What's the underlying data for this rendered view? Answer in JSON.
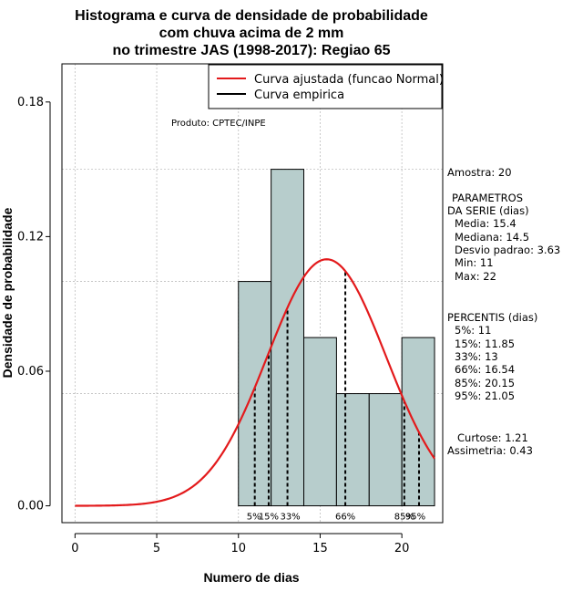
{
  "chart_data": {
    "type": "bar",
    "title_lines": [
      "Histograma e curva de densidade de probabilidade",
      "com chuva acima de 2 mm",
      "no trimestre JAS (1998-2017): Regiao 65"
    ],
    "xlabel": "Numero de dias",
    "ylabel": "Densidade de probabilidade",
    "xlim": [
      -0.8,
      22.5
    ],
    "ylim": [
      -0.0075,
      0.197
    ],
    "x_ticks": [
      0,
      5,
      10,
      15,
      20
    ],
    "x_tick_labels": [
      "0",
      "5",
      "10",
      "15",
      "20"
    ],
    "y_ticks": [
      0.0,
      0.06,
      0.12,
      0.18
    ],
    "y_tick_labels": [
      "0.00",
      "0.06",
      "0.12",
      "0.18"
    ],
    "grid": true,
    "grid_x": [
      0,
      5,
      10,
      15,
      20
    ],
    "grid_y": [
      0.05,
      0.1,
      0.15
    ],
    "histogram": {
      "bins": [
        {
          "from": 10,
          "to": 12,
          "density": 0.1
        },
        {
          "from": 12,
          "to": 14,
          "density": 0.15
        },
        {
          "from": 14,
          "to": 16,
          "density": 0.075
        },
        {
          "from": 16,
          "to": 18,
          "density": 0.05
        },
        {
          "from": 18,
          "to": 20,
          "density": 0.05
        },
        {
          "from": 20,
          "to": 22,
          "density": 0.075
        }
      ],
      "fill": "#b7cdcc",
      "stroke": "#000000"
    },
    "normal_curve": {
      "mean": 15.4,
      "sd": 3.63,
      "x_from": 0,
      "x_to": 22,
      "color": "#e31a1c"
    },
    "percentile_lines": [
      {
        "label": "5%",
        "x": 11
      },
      {
        "label": "15%",
        "x": 11.85
      },
      {
        "label": "33%",
        "x": 13
      },
      {
        "label": "66%",
        "x": 16.54
      },
      {
        "label": "85%",
        "x": 20.15
      },
      {
        "label": "95%",
        "x": 21.05
      }
    ],
    "legend": {
      "placement": "top-right",
      "entries": [
        {
          "label": "Curva ajustada (funcao Normal)",
          "color": "#e31a1c"
        },
        {
          "label": "Curva empirica",
          "color": "#000000"
        }
      ]
    },
    "credit": "Produto: CPTEC/INPE",
    "side_stats": {
      "amostra": "Amostra: 20",
      "parametros_lines": [
        "PARAMETROS",
        "DA SERIE (dias)"
      ],
      "param_values": [
        "Media: 15.4",
        "Mediana: 14.5",
        "Desvio padrao: 3.63",
        "Min: 11",
        "Max: 22"
      ],
      "percentis_title": "PERCENTIS (dias)",
      "percentis_values": [
        "5%: 11",
        "15%: 11.85",
        "33%: 13",
        "66%: 16.54",
        "85%: 20.15",
        "95%: 21.05"
      ],
      "curtose": "Curtose: 1.21",
      "assimetria": "Assimetria: 0.43"
    }
  }
}
